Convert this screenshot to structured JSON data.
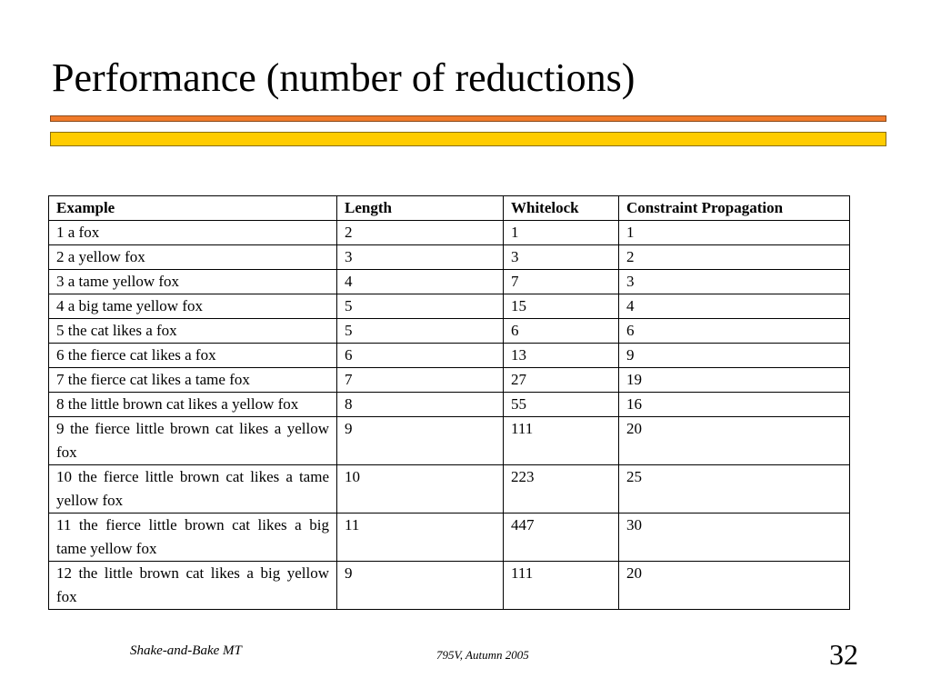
{
  "slide": {
    "title": "Performance (number of reductions)",
    "footer_left": "Shake-and-Bake MT",
    "footer_center": "795V, Autumn 2005",
    "page_number": "32"
  },
  "colors": {
    "orange_bar": "#f07a2a",
    "yellow_bar": "#ffcc00"
  },
  "table": {
    "headers": [
      "Example",
      "Length",
      "Whitelock",
      "Constraint Propagation"
    ],
    "rows": [
      [
        "1 a fox",
        "2",
        "1",
        "1"
      ],
      [
        "2 a yellow fox",
        "3",
        "3",
        "2"
      ],
      [
        "3 a tame yellow fox",
        "4",
        "7",
        "3"
      ],
      [
        "4 a big tame yellow fox",
        "5",
        "15",
        "4"
      ],
      [
        "5 the cat likes a fox",
        "5",
        "6",
        "6"
      ],
      [
        "6 the fierce cat likes a fox",
        "6",
        "13",
        "9"
      ],
      [
        "7 the fierce cat likes a tame fox",
        "7",
        "27",
        "19"
      ],
      [
        "8 the little brown cat likes a yellow fox",
        "8",
        "55",
        "16"
      ],
      [
        "9 the fierce little brown cat likes a yellow fox",
        "9",
        "111",
        "20"
      ],
      [
        "10 the fierce little brown cat likes a tame yellow fox",
        "10",
        "223",
        "25"
      ],
      [
        "11 the fierce little brown cat likes a big tame yellow fox",
        "11",
        "447",
        "30"
      ],
      [
        "12 the little brown cat likes a big yellow fox",
        "9",
        "111",
        "20"
      ]
    ]
  }
}
